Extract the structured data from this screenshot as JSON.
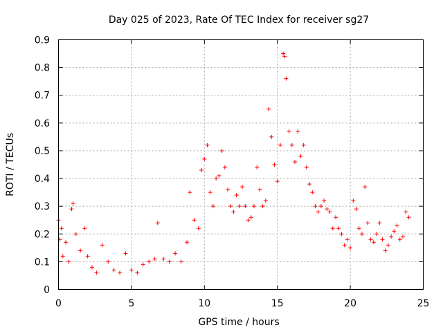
{
  "chart_data": {
    "type": "scatter",
    "title": "Day 025 of 2023, Rate Of TEC Index for receiver sg27",
    "xlabel": "GPS time / hours",
    "ylabel": "ROTI / TECUs",
    "xlim": [
      0,
      25
    ],
    "ylim": [
      0,
      0.9
    ],
    "xticks": [
      "0",
      "5",
      "10",
      "15",
      "20",
      "25"
    ],
    "yticks": [
      "0",
      "0.1",
      "0.2",
      "0.3",
      "0.4",
      "0.5",
      "0.6",
      "0.7",
      "0.8",
      "0.9"
    ],
    "grid": true,
    "marker": "+",
    "color": "#ff0000",
    "series": [
      {
        "x": [
          0.0,
          0.1,
          0.2,
          0.3,
          0.5,
          0.7,
          0.9,
          1.0,
          1.2,
          1.5,
          1.8,
          2.0,
          2.3,
          2.6,
          3.0,
          3.4,
          3.8,
          4.2,
          4.6,
          5.0,
          5.4,
          5.8,
          6.2,
          6.6,
          6.8,
          7.2,
          7.6,
          8.0,
          8.4,
          8.8,
          9.0,
          9.3,
          9.6,
          9.8,
          10.0,
          10.2,
          10.4,
          10.6,
          10.8,
          11.0,
          11.2,
          11.4,
          11.6,
          11.8,
          12.0,
          12.2,
          12.4,
          12.6,
          12.8,
          13.0,
          13.2,
          13.4,
          13.6,
          13.8,
          14.0,
          14.2,
          14.4,
          14.6,
          14.8,
          15.0,
          15.2,
          15.4,
          15.5,
          15.6,
          15.8,
          16.0,
          16.2,
          16.4,
          16.6,
          16.8,
          17.0,
          17.2,
          17.4,
          17.6,
          17.8,
          18.0,
          18.2,
          18.4,
          18.6,
          18.8,
          19.0,
          19.2,
          19.4,
          19.6,
          19.8,
          20.0,
          20.2,
          20.4,
          20.6,
          20.8,
          21.0,
          21.2,
          21.4,
          21.6,
          21.8,
          22.0,
          22.2,
          22.4,
          22.6,
          22.8,
          23.0,
          23.2,
          23.4,
          23.6,
          23.8,
          24.0
        ],
        "y": [
          0.25,
          0.18,
          0.22,
          0.12,
          0.17,
          0.1,
          0.29,
          0.31,
          0.2,
          0.14,
          0.22,
          0.12,
          0.08,
          0.06,
          0.16,
          0.1,
          0.07,
          0.06,
          0.13,
          0.07,
          0.06,
          0.09,
          0.1,
          0.11,
          0.24,
          0.11,
          0.1,
          0.13,
          0.1,
          0.17,
          0.35,
          0.25,
          0.22,
          0.43,
          0.47,
          0.52,
          0.35,
          0.3,
          0.4,
          0.41,
          0.5,
          0.44,
          0.36,
          0.3,
          0.28,
          0.34,
          0.3,
          0.37,
          0.3,
          0.25,
          0.26,
          0.3,
          0.44,
          0.36,
          0.3,
          0.32,
          0.65,
          0.55,
          0.45,
          0.39,
          0.52,
          0.85,
          0.84,
          0.76,
          0.57,
          0.52,
          0.46,
          0.57,
          0.48,
          0.52,
          0.44,
          0.38,
          0.35,
          0.3,
          0.28,
          0.3,
          0.32,
          0.29,
          0.28,
          0.22,
          0.26,
          0.22,
          0.2,
          0.16,
          0.18,
          0.15,
          0.32,
          0.29,
          0.22,
          0.2,
          0.37,
          0.24,
          0.18,
          0.17,
          0.2,
          0.24,
          0.18,
          0.14,
          0.16,
          0.19,
          0.21,
          0.23,
          0.18,
          0.19,
          0.28,
          0.26
        ]
      }
    ]
  }
}
